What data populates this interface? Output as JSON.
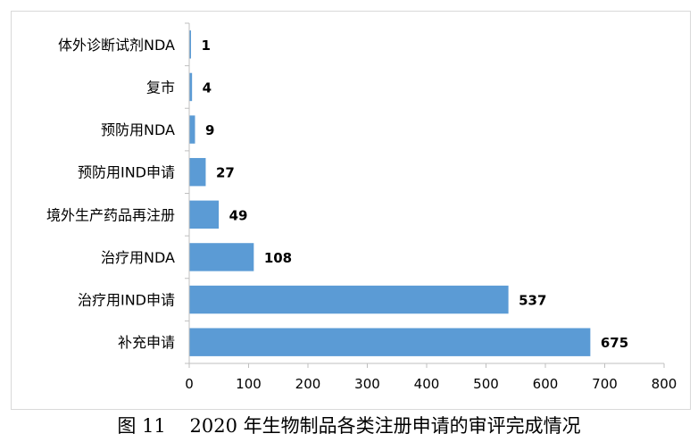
{
  "caption": "图 11    2020 年生物制品各类注册申请的审评完成情况",
  "chart_data": {
    "type": "bar",
    "orientation": "horizontal",
    "categories": [
      "体外诊断试剂NDA",
      "复市",
      "预防用NDA",
      "预防用IND申请",
      "境外生产药品再注册",
      "治疗用NDA",
      "治疗用IND申请",
      "补充申请"
    ],
    "values": [
      1,
      4,
      9,
      27,
      49,
      108,
      537,
      675
    ],
    "xlim": [
      0,
      800
    ],
    "xticks": [
      0,
      100,
      200,
      300,
      400,
      500,
      600,
      700,
      800
    ],
    "bar_color": "#5b9bd5",
    "data_labels": true,
    "grid": false
  }
}
